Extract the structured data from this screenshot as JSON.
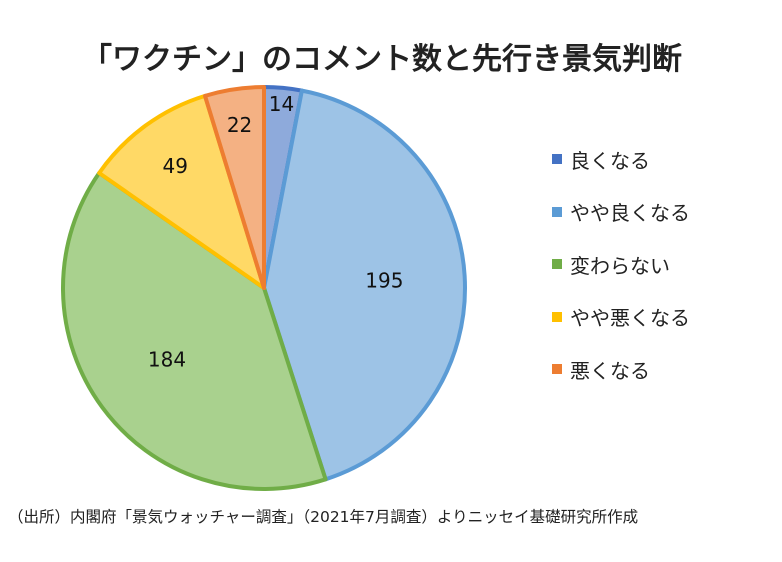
{
  "chart_data": {
    "type": "pie",
    "title": "「ワクチン」のコメント数と先行き景気判断",
    "categories": [
      "良くなる",
      "やや良くなる",
      "変わらない",
      "やや悪くなる",
      "悪くなる"
    ],
    "values": [
      14,
      195,
      184,
      49,
      22
    ],
    "colors": [
      {
        "fill": "#8eaadb",
        "stroke": "#4472c4",
        "swatch": "#4472c4"
      },
      {
        "fill": "#9dc3e6",
        "stroke": "#5b9bd5",
        "swatch": "#5b9bd5"
      },
      {
        "fill": "#a9d18e",
        "stroke": "#70ad47",
        "swatch": "#70ad47"
      },
      {
        "fill": "#ffd966",
        "stroke": "#ffc000",
        "swatch": "#ffc000"
      },
      {
        "fill": "#f4b183",
        "stroke": "#ed7d31",
        "swatch": "#ed7d31"
      }
    ],
    "legend_position": "right",
    "start_angle": "12 o'clock",
    "direction": "clockwise"
  },
  "source": "（出所）内閣府「景気ウォッチャー調査」（2021年7月調査）よりニッセイ基礎研究所作成"
}
